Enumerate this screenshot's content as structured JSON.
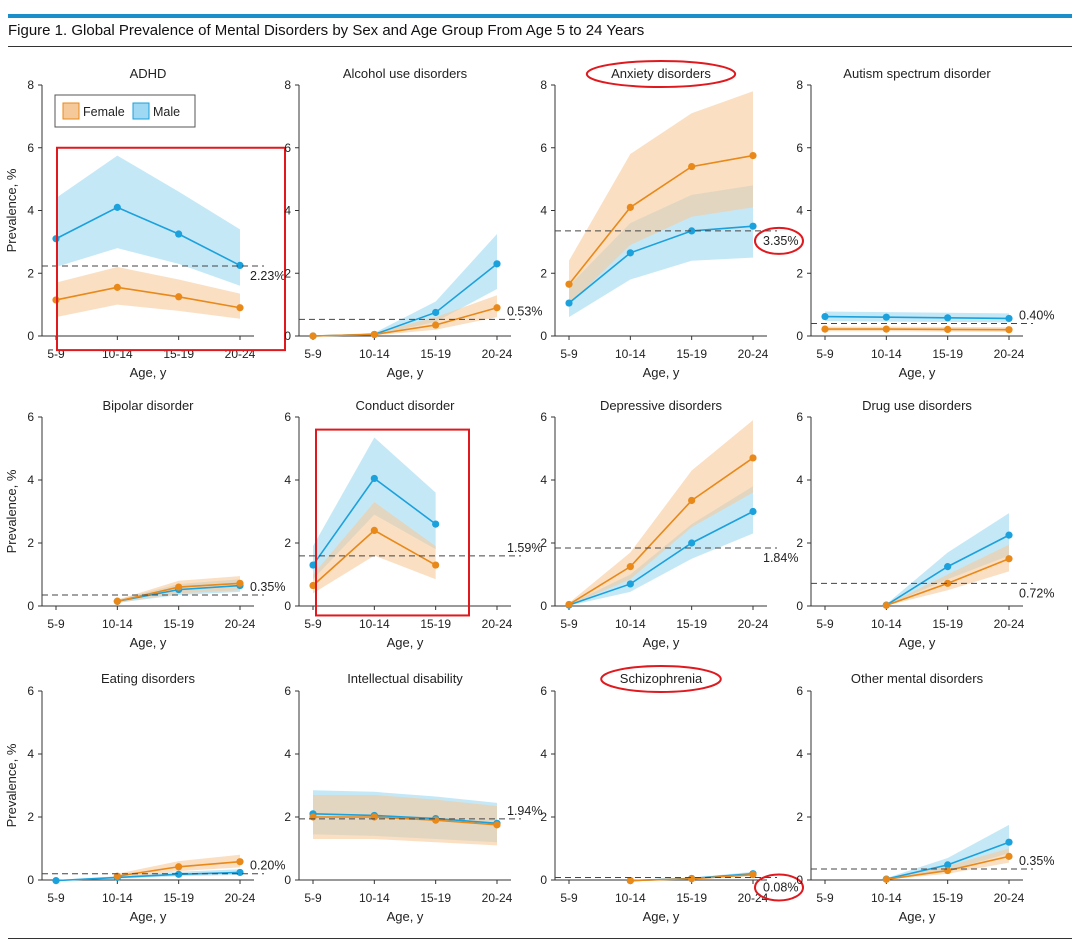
{
  "figure": {
    "title": "Figure 1. Global Prevalence of Mental Disorders by Sex and Age Group From Age 5 to 24 Years"
  },
  "colors": {
    "female": "#e8891a",
    "female_band": "#f6c99b",
    "male": "#1ba1dc",
    "male_band": "#9fd8f2",
    "highlight": "#e0191f",
    "accent_bar": "#1a8fc9"
  },
  "legend": {
    "female": "Female",
    "male": "Male"
  },
  "chart_data": [
    {
      "type": "line",
      "title": "ADHD",
      "xlabel": "Age, y",
      "ylabel": "Prevalence, %",
      "categories": [
        "5-9",
        "10-14",
        "15-19",
        "20-24"
      ],
      "ylim": [
        0,
        8
      ],
      "yticks": [
        0,
        2,
        4,
        6,
        8
      ],
      "series": [
        {
          "name": "Female",
          "values": [
            1.15,
            1.55,
            1.25,
            0.9
          ],
          "lower": [
            0.6,
            1.0,
            0.8,
            0.55
          ],
          "upper": [
            1.7,
            2.2,
            1.8,
            1.35
          ]
        },
        {
          "name": "Male",
          "values": [
            3.1,
            4.1,
            3.25,
            2.25
          ],
          "lower": [
            2.2,
            2.8,
            2.3,
            1.6
          ],
          "upper": [
            4.4,
            5.75,
            4.6,
            3.4
          ]
        }
      ],
      "reference": 2.23,
      "reference_label": "2.23%",
      "highlight_box": true,
      "highlight_title": false,
      "highlight_value": false
    },
    {
      "type": "line",
      "title": "Alcohol use disorders",
      "xlabel": "Age, y",
      "ylabel": "",
      "categories": [
        "5-9",
        "10-14",
        "15-19",
        "20-24"
      ],
      "ylim": [
        0,
        8
      ],
      "yticks": [
        0,
        2,
        4,
        6,
        8
      ],
      "series": [
        {
          "name": "Female",
          "values": [
            0,
            0.05,
            0.35,
            0.9
          ],
          "lower": [
            0,
            0.02,
            0.2,
            0.6
          ],
          "upper": [
            0,
            0.1,
            0.6,
            1.3
          ]
        },
        {
          "name": "Male",
          "values": [
            0,
            0.05,
            0.75,
            2.3
          ],
          "lower": [
            0,
            0.02,
            0.45,
            1.5
          ],
          "upper": [
            0,
            0.1,
            1.1,
            3.25
          ]
        }
      ],
      "reference": 0.53,
      "reference_label": "0.53%",
      "highlight_box": false,
      "highlight_title": false,
      "highlight_value": false
    },
    {
      "type": "line",
      "title": "Anxiety disorders",
      "xlabel": "Age, y",
      "ylabel": "",
      "categories": [
        "5-9",
        "10-14",
        "15-19",
        "20-24"
      ],
      "ylim": [
        0,
        8
      ],
      "yticks": [
        0,
        2,
        4,
        6,
        8
      ],
      "series": [
        {
          "name": "Female",
          "values": [
            1.65,
            4.1,
            5.4,
            5.75
          ],
          "lower": [
            1.0,
            2.9,
            3.8,
            4.1
          ],
          "upper": [
            2.4,
            5.8,
            7.1,
            7.8
          ]
        },
        {
          "name": "Male",
          "values": [
            1.05,
            2.65,
            3.35,
            3.5
          ],
          "lower": [
            0.6,
            1.8,
            2.4,
            2.5
          ],
          "upper": [
            1.6,
            3.6,
            4.5,
            4.8
          ]
        }
      ],
      "reference": 3.35,
      "reference_label": "3.35%",
      "highlight_box": false,
      "highlight_title": true,
      "highlight_value": true
    },
    {
      "type": "line",
      "title": "Autism spectrum disorder",
      "xlabel": "Age, y",
      "ylabel": "",
      "categories": [
        "5-9",
        "10-14",
        "15-19",
        "20-24"
      ],
      "ylim": [
        0,
        8
      ],
      "yticks": [
        0,
        2,
        4,
        6,
        8
      ],
      "series": [
        {
          "name": "Female",
          "values": [
            0.22,
            0.22,
            0.21,
            0.2
          ],
          "lower": [
            0.15,
            0.15,
            0.14,
            0.13
          ],
          "upper": [
            0.3,
            0.3,
            0.29,
            0.28
          ]
        },
        {
          "name": "Male",
          "values": [
            0.62,
            0.6,
            0.58,
            0.56
          ],
          "lower": [
            0.48,
            0.46,
            0.45,
            0.43
          ],
          "upper": [
            0.78,
            0.76,
            0.74,
            0.72
          ]
        }
      ],
      "reference": 0.4,
      "reference_label": "0.40%",
      "highlight_box": false,
      "highlight_title": false,
      "highlight_value": false
    },
    {
      "type": "line",
      "title": "Bipolar disorder",
      "xlabel": "Age, y",
      "ylabel": "Prevalence, %",
      "categories": [
        "5-9",
        "10-14",
        "15-19",
        "20-24"
      ],
      "ylim": [
        0,
        6
      ],
      "yticks": [
        0,
        2,
        4,
        6
      ],
      "series": [
        {
          "name": "Female",
          "values": [
            null,
            0.15,
            0.6,
            0.72
          ],
          "lower": [
            null,
            0.1,
            0.4,
            0.5
          ],
          "upper": [
            null,
            0.2,
            0.8,
            0.95
          ]
        },
        {
          "name": "Male",
          "values": [
            null,
            0.15,
            0.52,
            0.65
          ],
          "lower": [
            null,
            0.1,
            0.35,
            0.45
          ],
          "upper": [
            null,
            0.2,
            0.7,
            0.85
          ]
        }
      ],
      "reference": 0.35,
      "reference_label": "0.35%",
      "highlight_box": false,
      "highlight_title": false,
      "highlight_value": false
    },
    {
      "type": "line",
      "title": "Conduct disorder",
      "xlabel": "Age, y",
      "ylabel": "",
      "categories": [
        "5-9",
        "10-14",
        "15-19",
        "20-24"
      ],
      "ylim": [
        0,
        6
      ],
      "yticks": [
        0,
        2,
        4,
        6
      ],
      "series": [
        {
          "name": "Female",
          "values": [
            0.65,
            2.4,
            1.3,
            null
          ],
          "lower": [
            0.4,
            1.6,
            0.85,
            null
          ],
          "upper": [
            1.0,
            3.3,
            1.9,
            null
          ]
        },
        {
          "name": "Male",
          "values": [
            1.3,
            4.05,
            2.6,
            null
          ],
          "lower": [
            0.85,
            2.9,
            1.8,
            null
          ],
          "upper": [
            1.9,
            5.35,
            3.6,
            null
          ]
        }
      ],
      "reference": 1.59,
      "reference_label": "1.59%",
      "highlight_box": true,
      "highlight_title": false,
      "highlight_value": false
    },
    {
      "type": "line",
      "title": "Depressive disorders",
      "xlabel": "Age, y",
      "ylabel": "",
      "categories": [
        "5-9",
        "10-14",
        "15-19",
        "20-24"
      ],
      "ylim": [
        0,
        6
      ],
      "yticks": [
        0,
        2,
        4,
        6
      ],
      "series": [
        {
          "name": "Female",
          "values": [
            0.05,
            1.25,
            3.35,
            4.7
          ],
          "lower": [
            0.02,
            0.85,
            2.5,
            3.6
          ],
          "upper": [
            0.1,
            1.7,
            4.3,
            5.9
          ]
        },
        {
          "name": "Male",
          "values": [
            0.03,
            0.7,
            2.0,
            3.0
          ],
          "lower": [
            0.01,
            0.45,
            1.5,
            2.3
          ],
          "upper": [
            0.06,
            1.0,
            2.6,
            3.8
          ]
        }
      ],
      "reference": 1.84,
      "reference_label": "1.84%",
      "highlight_box": false,
      "highlight_title": false,
      "highlight_value": false
    },
    {
      "type": "line",
      "title": "Drug use disorders",
      "xlabel": "Age, y",
      "ylabel": "",
      "categories": [
        "5-9",
        "10-14",
        "15-19",
        "20-24"
      ],
      "ylim": [
        0,
        6
      ],
      "yticks": [
        0,
        2,
        4,
        6
      ],
      "series": [
        {
          "name": "Female",
          "values": [
            null,
            0.02,
            0.72,
            1.5
          ],
          "lower": [
            null,
            0.01,
            0.5,
            1.1
          ],
          "upper": [
            null,
            0.04,
            1.0,
            1.95
          ]
        },
        {
          "name": "Male",
          "values": [
            null,
            0.03,
            1.25,
            2.25
          ],
          "lower": [
            null,
            0.01,
            0.85,
            1.6
          ],
          "upper": [
            null,
            0.06,
            1.7,
            2.95
          ]
        }
      ],
      "reference": 0.72,
      "reference_label": "0.72%",
      "highlight_box": false,
      "highlight_title": false,
      "highlight_value": false
    },
    {
      "type": "line",
      "title": "Eating disorders",
      "xlabel": "Age, y",
      "ylabel": "Prevalence, %",
      "categories": [
        "5-9",
        "10-14",
        "15-19",
        "20-24"
      ],
      "ylim": [
        0,
        6
      ],
      "yticks": [
        0,
        2,
        4,
        6
      ],
      "series": [
        {
          "name": "Female",
          "values": [
            null,
            0.12,
            0.42,
            0.58
          ],
          "lower": [
            null,
            0.06,
            0.28,
            0.4
          ],
          "upper": [
            null,
            0.2,
            0.6,
            0.8
          ]
        },
        {
          "name": "Male",
          "values": [
            -0.02,
            0.08,
            0.18,
            0.24
          ],
          "lower": [
            -0.03,
            0.04,
            0.12,
            0.16
          ],
          "upper": [
            0,
            0.12,
            0.26,
            0.34
          ]
        }
      ],
      "reference": 0.2,
      "reference_label": "0.20%",
      "highlight_box": false,
      "highlight_title": false,
      "highlight_value": false
    },
    {
      "type": "line",
      "title": "Intellectual disability",
      "xlabel": "Age, y",
      "ylabel": "",
      "categories": [
        "5-9",
        "10-14",
        "15-19",
        "20-24"
      ],
      "ylim": [
        0,
        6
      ],
      "yticks": [
        0,
        2,
        4,
        6
      ],
      "series": [
        {
          "name": "Female",
          "values": [
            2.0,
            2.0,
            1.9,
            1.75
          ],
          "lower": [
            1.3,
            1.3,
            1.2,
            1.1
          ],
          "upper": [
            2.7,
            2.7,
            2.55,
            2.35
          ]
        },
        {
          "name": "Male",
          "values": [
            2.1,
            2.05,
            1.95,
            1.8
          ],
          "lower": [
            1.45,
            1.4,
            1.3,
            1.2
          ],
          "upper": [
            2.85,
            2.8,
            2.65,
            2.45
          ]
        }
      ],
      "reference": 1.94,
      "reference_label": "1.94%",
      "highlight_box": false,
      "highlight_title": false,
      "highlight_value": false
    },
    {
      "type": "line",
      "title": "Schizophrenia",
      "xlabel": "Age, y",
      "ylabel": "",
      "categories": [
        "5-9",
        "10-14",
        "15-19",
        "20-24"
      ],
      "ylim": [
        0,
        6
      ],
      "yticks": [
        0,
        2,
        4,
        6
      ],
      "series": [
        {
          "name": "Female",
          "values": [
            null,
            -0.02,
            0.04,
            0.17
          ],
          "lower": [
            null,
            -0.03,
            0.02,
            0.12
          ],
          "upper": [
            null,
            0,
            0.06,
            0.22
          ]
        },
        {
          "name": "Male",
          "values": [
            null,
            -0.02,
            0.05,
            0.2
          ],
          "lower": [
            null,
            -0.03,
            0.03,
            0.14
          ],
          "upper": [
            null,
            0,
            0.07,
            0.26
          ]
        }
      ],
      "reference": 0.08,
      "reference_label": "0.08%",
      "highlight_box": false,
      "highlight_title": true,
      "highlight_value": true
    },
    {
      "type": "line",
      "title": "Other mental disorders",
      "xlabel": "Age, y",
      "ylabel": "",
      "categories": [
        "5-9",
        "10-14",
        "15-19",
        "20-24"
      ],
      "ylim": [
        0,
        6
      ],
      "yticks": [
        0,
        2,
        4,
        6
      ],
      "series": [
        {
          "name": "Female",
          "values": [
            null,
            0.02,
            0.3,
            0.75
          ],
          "lower": [
            null,
            0.01,
            0.2,
            0.55
          ],
          "upper": [
            null,
            0.04,
            0.45,
            1.0
          ]
        },
        {
          "name": "Male",
          "values": [
            null,
            0.03,
            0.48,
            1.2
          ],
          "lower": [
            null,
            0.01,
            0.3,
            0.85
          ],
          "upper": [
            null,
            0.06,
            0.7,
            1.75
          ]
        }
      ],
      "reference": 0.35,
      "reference_label": "0.35%",
      "highlight_box": false,
      "highlight_title": false,
      "highlight_value": false
    }
  ]
}
